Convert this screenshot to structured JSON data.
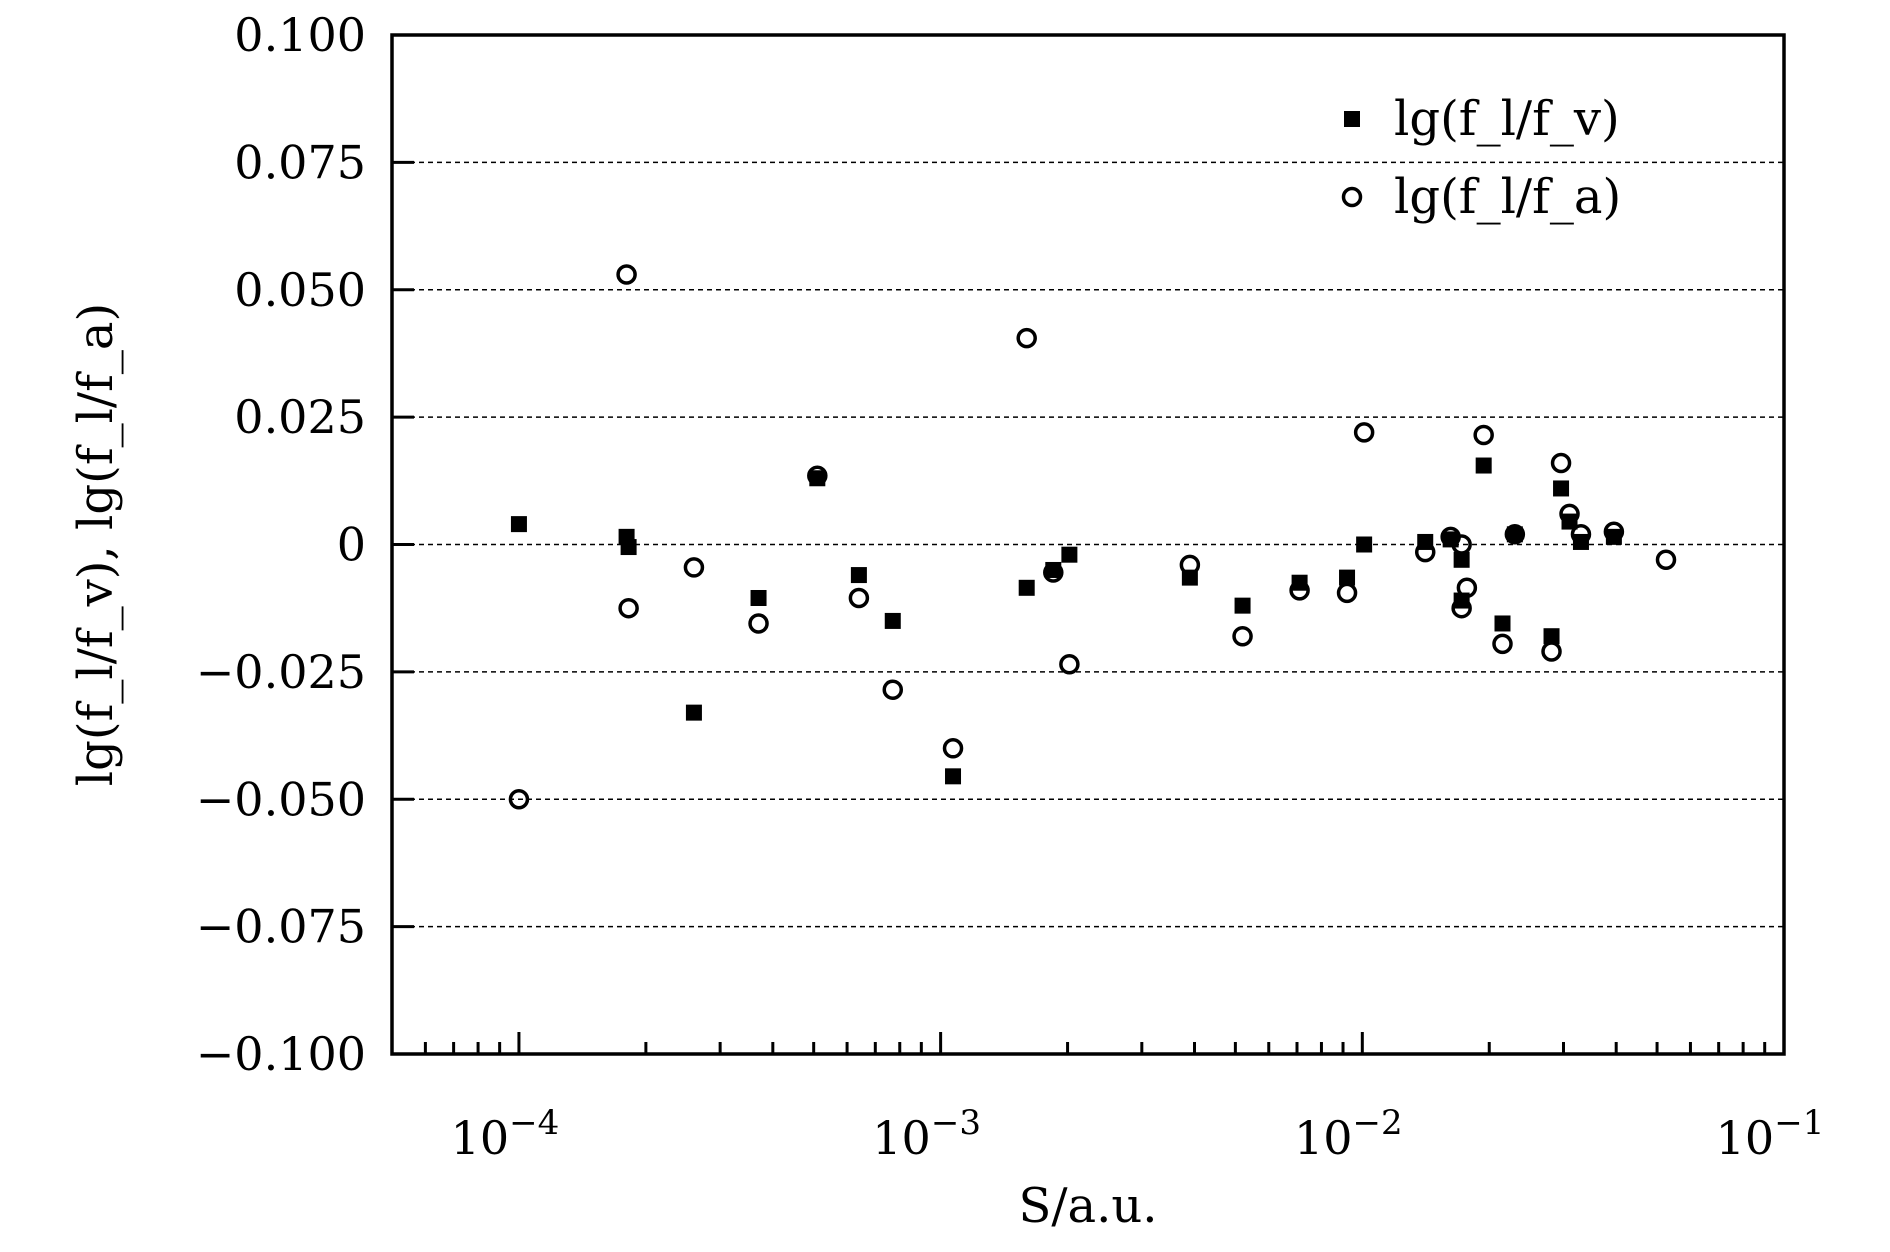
{
  "chart_data": {
    "type": "scatter",
    "title": "",
    "xlabel": "S/a.u.",
    "ylabel": "lg(f_l/f_v), lg(f_l/f_a)",
    "xscale": "log",
    "xlim": [
      5e-05,
      0.1
    ],
    "ylim": [
      -0.1,
      0.1
    ],
    "grid": "horizontal dashed",
    "legend_position": "top-right",
    "y_ticks": [
      0.1,
      0.075,
      0.05,
      0.025,
      0,
      -0.025,
      -0.05,
      -0.075,
      -0.1
    ],
    "y_tick_labels": [
      "0.100",
      "0.075",
      "0.050",
      "0.025",
      "0",
      "−0.025",
      "−0.050",
      "−0.075",
      "−0.100"
    ],
    "x_ticks": [
      0.0001,
      0.001,
      0.01,
      0.1
    ],
    "x_tick_labels": [
      {
        "base": "10",
        "exp": "−4"
      },
      {
        "base": "10",
        "exp": "−3"
      },
      {
        "base": "10",
        "exp": "−2"
      },
      {
        "base": "10",
        "exp": "−1"
      }
    ],
    "series": [
      {
        "name": "lg(f_l/f_v)",
        "marker": "filled-square",
        "color": "#000000",
        "points": [
          [
            0.0001,
            0.004
          ],
          [
            0.00018,
            0.0015
          ],
          [
            0.000182,
            -0.0005
          ],
          [
            0.00026,
            -0.033
          ],
          [
            0.00037,
            -0.0105
          ],
          [
            0.00051,
            0.013
          ],
          [
            0.00064,
            -0.006
          ],
          [
            0.00077,
            -0.015
          ],
          [
            0.00107,
            -0.0455
          ],
          [
            0.0016,
            -0.0085
          ],
          [
            0.00185,
            -0.005
          ],
          [
            0.00202,
            -0.002
          ],
          [
            0.0039,
            -0.0065
          ],
          [
            0.0052,
            -0.012
          ],
          [
            0.0071,
            -0.0075
          ],
          [
            0.0092,
            -0.0065
          ],
          [
            0.0101,
            0.0
          ],
          [
            0.0141,
            0.0005
          ],
          [
            0.0162,
            0.001
          ],
          [
            0.0172,
            -0.003
          ],
          [
            0.0172,
            -0.011
          ],
          [
            0.0194,
            0.0155
          ],
          [
            0.0215,
            -0.0155
          ],
          [
            0.023,
            0.002
          ],
          [
            0.0281,
            -0.018
          ],
          [
            0.0296,
            0.011
          ],
          [
            0.031,
            0.0045
          ],
          [
            0.033,
            0.0005
          ],
          [
            0.0395,
            0.0015
          ]
        ]
      },
      {
        "name": "lg(f_l/f_a)",
        "marker": "open-circle",
        "color": "#000000",
        "points": [
          [
            0.0001,
            -0.05
          ],
          [
            0.00018,
            0.053
          ],
          [
            0.000182,
            -0.0125
          ],
          [
            0.00026,
            -0.0045
          ],
          [
            0.00037,
            -0.0155
          ],
          [
            0.00051,
            0.0135
          ],
          [
            0.00064,
            -0.0105
          ],
          [
            0.00077,
            -0.0285
          ],
          [
            0.00107,
            -0.04
          ],
          [
            0.0016,
            0.0405
          ],
          [
            0.00185,
            -0.0055
          ],
          [
            0.00202,
            -0.0235
          ],
          [
            0.0039,
            -0.004
          ],
          [
            0.0052,
            -0.018
          ],
          [
            0.0071,
            -0.009
          ],
          [
            0.0092,
            -0.0095
          ],
          [
            0.0101,
            0.022
          ],
          [
            0.0141,
            -0.0015
          ],
          [
            0.0162,
            0.0015
          ],
          [
            0.0172,
            0.0
          ],
          [
            0.0172,
            -0.0125
          ],
          [
            0.0177,
            -0.0085
          ],
          [
            0.0194,
            0.0215
          ],
          [
            0.0215,
            -0.0195
          ],
          [
            0.023,
            0.002
          ],
          [
            0.0281,
            -0.021
          ],
          [
            0.0296,
            0.016
          ],
          [
            0.031,
            0.006
          ],
          [
            0.033,
            0.002
          ],
          [
            0.0395,
            0.0025
          ],
          [
            0.0525,
            -0.003
          ]
        ]
      }
    ]
  }
}
